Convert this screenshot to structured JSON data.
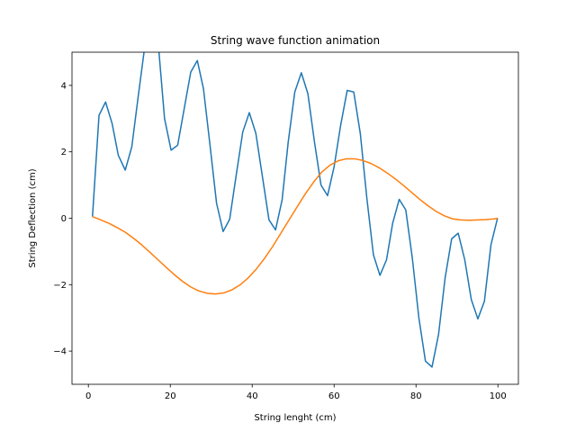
{
  "chart_data": {
    "type": "line",
    "title": "String wave function animation",
    "xlabel": "String lenght (cm)",
    "ylabel": "String Deflection (cm)",
    "xlim": [
      -4,
      105
    ],
    "ylim": [
      -5,
      5
    ],
    "xticks": [
      0,
      20,
      40,
      60,
      80,
      100
    ],
    "yticks": [
      -4,
      -2,
      0,
      2,
      4
    ],
    "grid": false,
    "series": [
      {
        "color": "#1f77b4",
        "x": [
          1,
          2.6,
          4.2,
          5.8,
          7.3,
          9,
          10.6,
          12.2,
          13.8,
          15.4,
          17,
          18.6,
          20.2,
          21.8,
          23.4,
          25,
          26.6,
          28.1,
          29.7,
          31.3,
          32.9,
          34.5,
          36.1,
          37.7,
          39.3,
          40.9,
          42.5,
          44.1,
          45.7,
          47.3,
          48.8,
          50.4,
          52,
          53.6,
          55.2,
          56.8,
          58.4,
          60,
          61.6,
          63.2,
          64.8,
          66.4,
          68,
          69.6,
          71.2,
          72.8,
          74.3,
          75.9,
          77.5,
          79.1,
          80.7,
          82.3,
          83.9,
          85.5,
          87.1,
          88.7,
          90.3,
          91.9,
          93.5,
          95.1,
          96.7,
          98.3,
          99.9
        ],
        "y": [
          0.05,
          3.1,
          3.5,
          2.85,
          1.9,
          1.45,
          2.15,
          3.7,
          5.2,
          5.6,
          5.35,
          3.0,
          2.05,
          2.2,
          3.3,
          4.4,
          4.75,
          3.9,
          2.2,
          0.45,
          -0.4,
          -0.03,
          1.3,
          2.6,
          3.18,
          2.55,
          1.25,
          -0.05,
          -0.35,
          0.55,
          2.3,
          3.8,
          4.38,
          3.75,
          2.3,
          1.0,
          0.68,
          1.55,
          2.8,
          3.85,
          3.8,
          2.55,
          0.6,
          -1.1,
          -1.72,
          -1.25,
          -0.15,
          0.57,
          0.25,
          -1.2,
          -3.0,
          -4.3,
          -4.48,
          -3.5,
          -1.8,
          -0.62,
          -0.45,
          -1.25,
          -2.45,
          -3.03,
          -2.5,
          -0.8,
          0.0
        ]
      },
      {
        "color": "#ff7f0e",
        "x": [
          1,
          3,
          5,
          7,
          9,
          11,
          13,
          15,
          17,
          19,
          21,
          23,
          25,
          27,
          29,
          31,
          33,
          35,
          37,
          39,
          41,
          43,
          45,
          47,
          49,
          51,
          53,
          55,
          57,
          59,
          61,
          63,
          65,
          67,
          69,
          71,
          73,
          75,
          77,
          79,
          81,
          83,
          85,
          87,
          89,
          91,
          93,
          95,
          97,
          99,
          100
        ],
        "y": [
          0.05,
          -0.05,
          -0.15,
          -0.28,
          -0.42,
          -0.6,
          -0.8,
          -1.02,
          -1.25,
          -1.48,
          -1.7,
          -1.9,
          -2.07,
          -2.19,
          -2.26,
          -2.28,
          -2.25,
          -2.16,
          -2.01,
          -1.8,
          -1.53,
          -1.21,
          -0.85,
          -0.45,
          -0.05,
          0.35,
          0.74,
          1.09,
          1.39,
          1.6,
          1.73,
          1.79,
          1.79,
          1.74,
          1.65,
          1.52,
          1.36,
          1.18,
          0.98,
          0.77,
          0.56,
          0.37,
          0.2,
          0.07,
          -0.02,
          -0.05,
          -0.06,
          -0.05,
          -0.04,
          -0.02,
          0.0
        ]
      }
    ]
  }
}
